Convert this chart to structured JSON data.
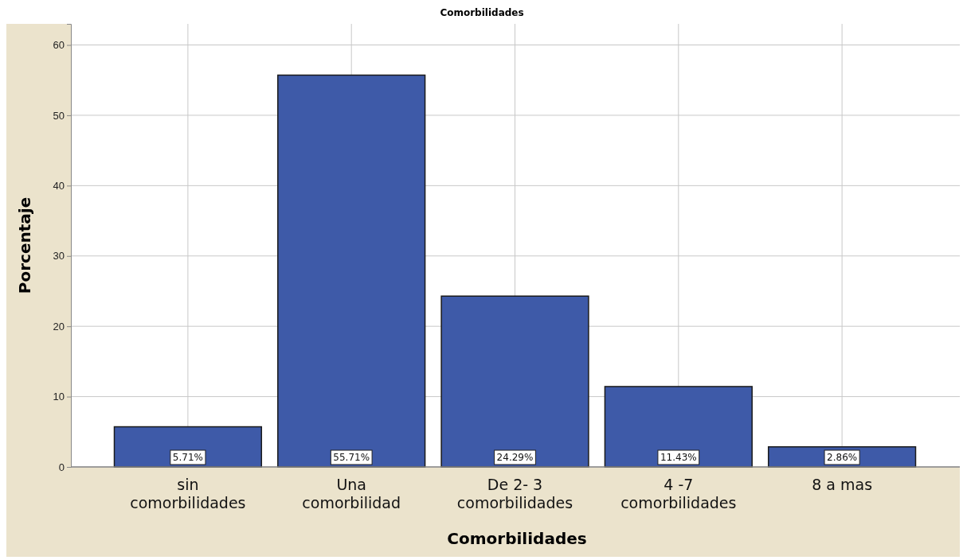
{
  "chart_data": {
    "type": "bar",
    "title": "Comorbilidades",
    "xlabel": "Comorbilidades",
    "ylabel": "Porcentaje",
    "categories": [
      "sin\ncomorbilidades",
      "Una\ncomorbilidad",
      "De 2- 3\ncomorbilidades",
      "4 -7\ncomorbilidades",
      "8 a mas"
    ],
    "values": [
      5.71,
      55.71,
      24.29,
      11.43,
      2.86
    ],
    "value_labels": [
      "5.71%",
      "55.71%",
      "24.29%",
      "11.43%",
      "2.86%"
    ],
    "color": "#3e5aa8",
    "ylim": [
      0,
      63
    ],
    "yticks": [
      0,
      10,
      20,
      30,
      40,
      50,
      60
    ],
    "grid": true
  }
}
